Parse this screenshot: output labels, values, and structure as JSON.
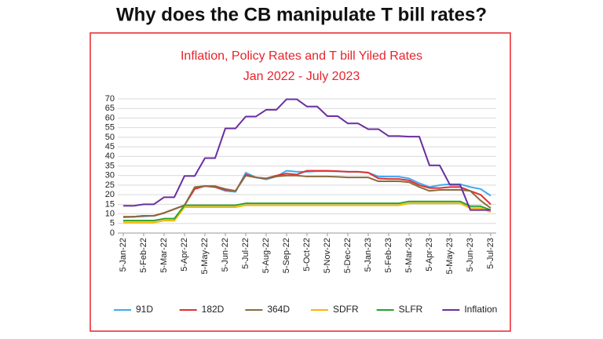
{
  "heading": "Why does the CB manipulate T bill rates?",
  "chart_data": {
    "type": "line",
    "title": "Inflation, Policy Rates and T bill Yiled Rates",
    "subtitle": "Jan 2022 - July 2023",
    "categories": [
      "5-Jan-22",
      null,
      "5-Feb-22",
      null,
      "5-Mar-22",
      null,
      "5-Apr-22",
      null,
      "5-May-22",
      null,
      "5-Jun-22",
      null,
      "5-Jul-22",
      null,
      "5-Aug-22",
      null,
      "5-Sep-22",
      null,
      "5-Oct-22",
      null,
      "5-Nov-22",
      null,
      "5-Dec-22",
      null,
      "5-Jan-23",
      null,
      "5-Feb-23",
      null,
      "5-Mar-23",
      null,
      "5-Apr-23",
      null,
      "5-May-23",
      null,
      "5-Jun-23",
      null,
      "5-Jul-23"
    ],
    "series": [
      {
        "name": "91D",
        "color": "#3fa9f5",
        "values": [
          8.2,
          8.5,
          8.7,
          9,
          10.5,
          12.5,
          14.5,
          23.5,
          24.5,
          24,
          22,
          21.5,
          31.5,
          29,
          28,
          29.5,
          32.5,
          32,
          32,
          32.3,
          32.3,
          32.2,
          32,
          32,
          31.5,
          29.5,
          29.4,
          29.4,
          28.5,
          26,
          24,
          25,
          25.5,
          25.5,
          24,
          23,
          19.5
        ]
      },
      {
        "name": "182D",
        "color": "#e03030",
        "values": [
          8.5,
          8.5,
          9,
          9,
          10.5,
          12.5,
          14.5,
          23,
          24.5,
          24,
          22.5,
          22,
          30.5,
          29,
          28.5,
          30,
          31,
          30.5,
          32.5,
          32.5,
          32.5,
          32.3,
          32,
          32,
          31.5,
          28.5,
          28.2,
          28.2,
          27.5,
          25,
          23.5,
          23.5,
          24,
          24,
          22,
          20,
          15
        ]
      },
      {
        "name": "364D",
        "color": "#8b6b3d",
        "values": [
          8.5,
          8.5,
          9,
          9,
          10.5,
          12.5,
          14.5,
          24,
          24.5,
          24.5,
          23,
          22,
          30,
          29,
          28.5,
          29.5,
          30,
          30,
          29.5,
          29.5,
          29.5,
          29.3,
          29,
          29,
          29,
          27,
          27,
          27,
          26.5,
          24,
          22,
          22.5,
          22.5,
          22.5,
          22,
          17,
          13
        ]
      },
      {
        "name": "SDFR",
        "color": "#f5b800",
        "values": [
          5.5,
          5.5,
          5.5,
          5.5,
          6.5,
          6.5,
          13.5,
          13.5,
          13.5,
          13.5,
          13.5,
          13.5,
          14.5,
          14.5,
          14.5,
          14.5,
          14.5,
          14.5,
          14.5,
          14.5,
          14.5,
          14.5,
          14.5,
          14.5,
          14.5,
          14.5,
          14.5,
          14.5,
          15.5,
          15.5,
          15.5,
          15.5,
          15.5,
          15.5,
          13,
          13,
          11
        ]
      },
      {
        "name": "SLFR",
        "color": "#2ca02c",
        "values": [
          6.5,
          6.5,
          6.5,
          6.5,
          7.5,
          7.5,
          14.5,
          14.5,
          14.5,
          14.5,
          14.5,
          14.5,
          15.5,
          15.5,
          15.5,
          15.5,
          15.5,
          15.5,
          15.5,
          15.5,
          15.5,
          15.5,
          15.5,
          15.5,
          15.5,
          15.5,
          15.5,
          15.5,
          16.5,
          16.5,
          16.5,
          16.5,
          16.5,
          16.5,
          14,
          14,
          12
        ]
      },
      {
        "name": "Inflation",
        "color": "#6a2fa0",
        "values": [
          14.2,
          14.2,
          15,
          15,
          18.7,
          18.7,
          29.8,
          29.8,
          39.1,
          39.1,
          54.6,
          54.6,
          60.8,
          60.8,
          64.3,
          64.3,
          69.8,
          69.8,
          66,
          66,
          61,
          61,
          57.2,
          57.2,
          54.2,
          54.2,
          50.6,
          50.6,
          50.3,
          50.3,
          35.3,
          35.3,
          25.2,
          25.2,
          12,
          12,
          12
        ]
      }
    ],
    "ylim": [
      0,
      70
    ],
    "yticks": [
      0,
      5,
      10,
      15,
      20,
      25,
      30,
      35,
      40,
      45,
      50,
      55,
      60,
      65,
      70
    ],
    "grid": true,
    "legend": "bottom"
  }
}
